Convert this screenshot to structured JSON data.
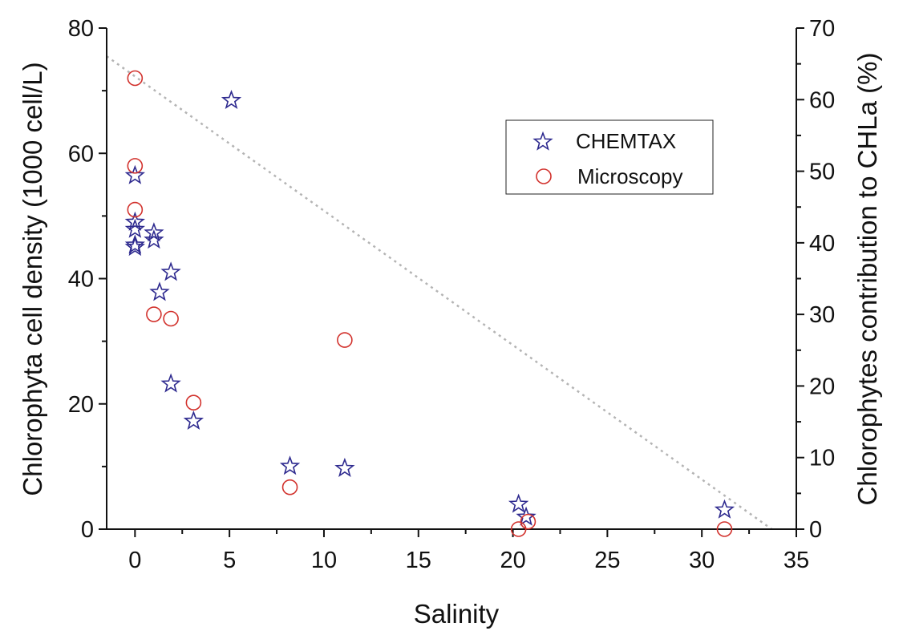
{
  "chart_data": {
    "type": "scatter",
    "xlabel": "Salinity",
    "ylabel": "Chlorophyta cell density (1000 cell/L)",
    "y2label": "Chlorophytes contribution to CHLa (%)",
    "xlim": [
      -1.5,
      35
    ],
    "ylim": [
      0,
      80
    ],
    "y2lim": [
      0,
      70
    ],
    "x_ticks": [
      0,
      5,
      10,
      15,
      20,
      25,
      30,
      35
    ],
    "y_ticks": [
      0,
      20,
      40,
      60,
      80
    ],
    "y2_ticks": [
      0,
      10,
      20,
      30,
      40,
      50,
      60,
      70
    ],
    "grid": false,
    "legend_position": "upper-right",
    "series": [
      {
        "name": "CHEMTAX",
        "axis": "right",
        "marker": "star",
        "color": "#2e2a8f",
        "points": [
          [
            0.0,
            49.5
          ],
          [
            0.0,
            43.0
          ],
          [
            0.0,
            42.0
          ],
          [
            0.0,
            39.5
          ],
          [
            0.0,
            39.8
          ],
          [
            1.0,
            41.5
          ],
          [
            1.0,
            40.5
          ],
          [
            1.3,
            33.2
          ],
          [
            1.9,
            36.0
          ],
          [
            1.9,
            20.4
          ],
          [
            3.1,
            15.2
          ],
          [
            5.1,
            60.0
          ],
          [
            8.2,
            8.9
          ],
          [
            11.1,
            8.6
          ],
          [
            20.3,
            3.6
          ],
          [
            20.7,
            1.8
          ],
          [
            31.2,
            2.8
          ]
        ]
      },
      {
        "name": "Microscopy",
        "axis": "left",
        "marker": "circle",
        "color": "#d2322d",
        "points": [
          [
            0.0,
            72.0
          ],
          [
            0.0,
            58.0
          ],
          [
            0.0,
            51.0
          ],
          [
            1.0,
            34.3
          ],
          [
            1.9,
            33.6
          ],
          [
            3.1,
            20.2
          ],
          [
            8.2,
            6.7
          ],
          [
            11.1,
            30.2
          ],
          [
            20.3,
            0.0
          ],
          [
            20.8,
            1.2
          ],
          [
            31.2,
            0.0
          ]
        ]
      }
    ],
    "trendline": {
      "style": "dotted",
      "color": "#b4b4b4",
      "axis": "left",
      "points": [
        [
          -1.5,
          75.5
        ],
        [
          33.7,
          0.0
        ]
      ]
    }
  }
}
